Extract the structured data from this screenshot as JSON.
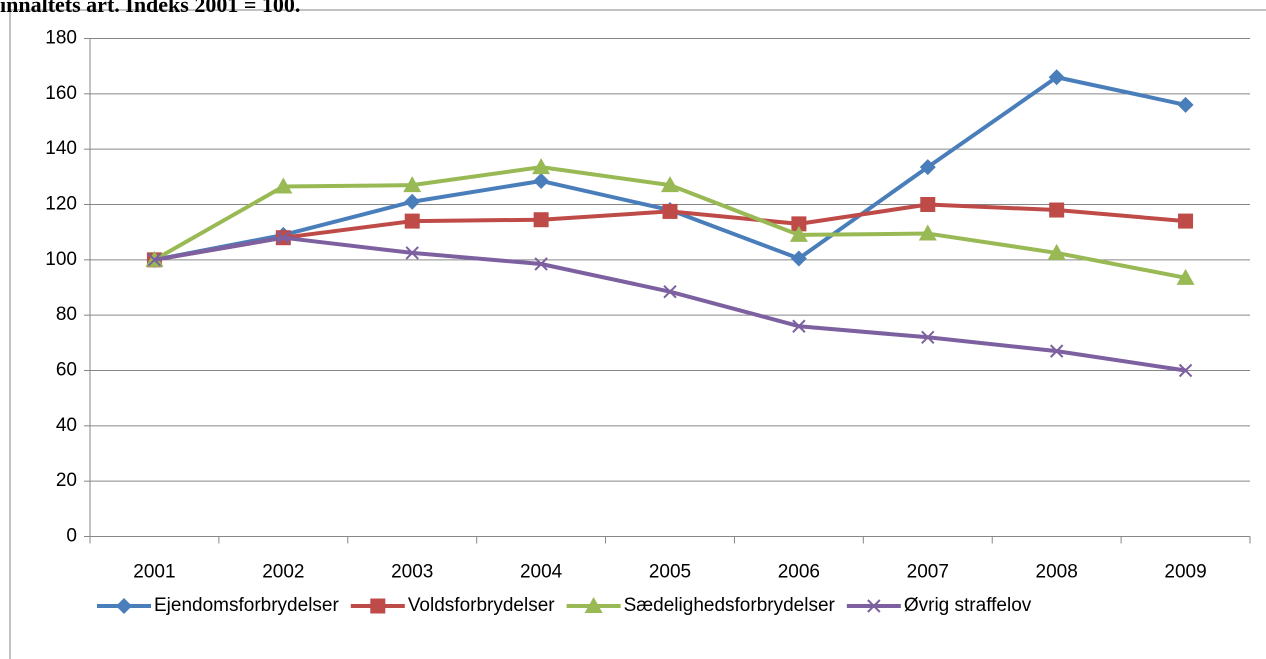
{
  "chart_data": {
    "type": "line",
    "title": "innaltets art. Indeks 2001 = 100.",
    "categories": [
      "2001",
      "2002",
      "2003",
      "2004",
      "2005",
      "2006",
      "2007",
      "2008",
      "2009"
    ],
    "series": [
      {
        "name": "Ejendomsforbrydelser",
        "color": "#4a7ebb",
        "marker": "diamond",
        "values": [
          100,
          109,
          121,
          128.5,
          118,
          100.5,
          133.5,
          166,
          156
        ]
      },
      {
        "name": "Voldsforbrydelser",
        "color": "#be4b48",
        "marker": "square",
        "values": [
          100,
          108,
          114,
          114.5,
          117.5,
          113,
          120,
          118,
          114
        ]
      },
      {
        "name": "Sædelighedsforbrydelser",
        "color": "#98b954",
        "marker": "triangle",
        "values": [
          100,
          126.5,
          127,
          133.5,
          127,
          109,
          109.5,
          102.5,
          93.5
        ]
      },
      {
        "name": "Øvrig straffelov",
        "color": "#7d60a0",
        "marker": "x",
        "values": [
          100,
          108,
          102.5,
          98.5,
          88.5,
          76,
          72,
          67,
          60
        ]
      }
    ],
    "ylim": [
      0,
      180
    ],
    "yticks": [
      0,
      20,
      40,
      60,
      80,
      100,
      120,
      140,
      160,
      180
    ],
    "grid": true,
    "legend": "bottom"
  }
}
